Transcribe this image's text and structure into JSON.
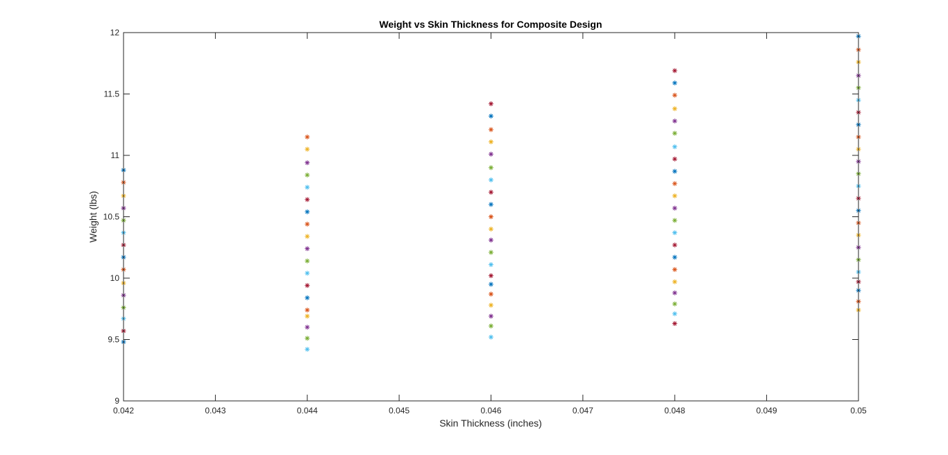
{
  "chart_data": {
    "type": "scatter",
    "title": "Weight vs Skin Thickness for Composite Design",
    "xlabel": "Skin Thickness (inches)",
    "ylabel": "Weight (lbs)",
    "xlim": [
      0.042,
      0.05
    ],
    "ylim": [
      9,
      12
    ],
    "xticks": [
      "0.042",
      "0.043",
      "0.044",
      "0.045",
      "0.046",
      "0.047",
      "0.048",
      "0.049",
      "0.05"
    ],
    "yticks": [
      "9",
      "9.5",
      "10",
      "10.5",
      "11",
      "11.5",
      "12"
    ],
    "grid": false,
    "legend": "none",
    "marker": "asterisk",
    "colors": [
      "#0072BD",
      "#D95319",
      "#EDB120",
      "#7E2F8E",
      "#77AC30",
      "#4DBEEE",
      "#A2142F"
    ],
    "points": [
      {
        "x": 0.042,
        "y": 10.88
      },
      {
        "x": 0.042,
        "y": 10.78
      },
      {
        "x": 0.042,
        "y": 10.67
      },
      {
        "x": 0.042,
        "y": 10.57
      },
      {
        "x": 0.042,
        "y": 10.47
      },
      {
        "x": 0.042,
        "y": 10.37
      },
      {
        "x": 0.042,
        "y": 10.27
      },
      {
        "x": 0.042,
        "y": 10.17
      },
      {
        "x": 0.042,
        "y": 10.07
      },
      {
        "x": 0.042,
        "y": 9.96
      },
      {
        "x": 0.042,
        "y": 9.86
      },
      {
        "x": 0.042,
        "y": 9.76
      },
      {
        "x": 0.042,
        "y": 9.67
      },
      {
        "x": 0.042,
        "y": 9.57
      },
      {
        "x": 0.042,
        "y": 9.48
      },
      {
        "x": 0.044,
        "y": 11.15
      },
      {
        "x": 0.044,
        "y": 11.05
      },
      {
        "x": 0.044,
        "y": 10.94
      },
      {
        "x": 0.044,
        "y": 10.84
      },
      {
        "x": 0.044,
        "y": 10.74
      },
      {
        "x": 0.044,
        "y": 10.64
      },
      {
        "x": 0.044,
        "y": 10.54
      },
      {
        "x": 0.044,
        "y": 10.44
      },
      {
        "x": 0.044,
        "y": 10.34
      },
      {
        "x": 0.044,
        "y": 10.24
      },
      {
        "x": 0.044,
        "y": 10.14
      },
      {
        "x": 0.044,
        "y": 10.04
      },
      {
        "x": 0.044,
        "y": 9.94
      },
      {
        "x": 0.044,
        "y": 9.84
      },
      {
        "x": 0.044,
        "y": 9.74
      },
      {
        "x": 0.044,
        "y": 9.69
      },
      {
        "x": 0.044,
        "y": 9.6
      },
      {
        "x": 0.044,
        "y": 9.51
      },
      {
        "x": 0.044,
        "y": 9.42
      },
      {
        "x": 0.046,
        "y": 11.42
      },
      {
        "x": 0.046,
        "y": 11.32
      },
      {
        "x": 0.046,
        "y": 11.21
      },
      {
        "x": 0.046,
        "y": 11.11
      },
      {
        "x": 0.046,
        "y": 11.01
      },
      {
        "x": 0.046,
        "y": 10.9
      },
      {
        "x": 0.046,
        "y": 10.8
      },
      {
        "x": 0.046,
        "y": 10.7
      },
      {
        "x": 0.046,
        "y": 10.6
      },
      {
        "x": 0.046,
        "y": 10.5
      },
      {
        "x": 0.046,
        "y": 10.4
      },
      {
        "x": 0.046,
        "y": 10.31
      },
      {
        "x": 0.046,
        "y": 10.21
      },
      {
        "x": 0.046,
        "y": 10.11
      },
      {
        "x": 0.046,
        "y": 10.02
      },
      {
        "x": 0.046,
        "y": 9.95
      },
      {
        "x": 0.046,
        "y": 9.87
      },
      {
        "x": 0.046,
        "y": 9.78
      },
      {
        "x": 0.046,
        "y": 9.69
      },
      {
        "x": 0.046,
        "y": 9.61
      },
      {
        "x": 0.046,
        "y": 9.52
      },
      {
        "x": 0.048,
        "y": 11.69
      },
      {
        "x": 0.048,
        "y": 11.59
      },
      {
        "x": 0.048,
        "y": 11.49
      },
      {
        "x": 0.048,
        "y": 11.38
      },
      {
        "x": 0.048,
        "y": 11.28
      },
      {
        "x": 0.048,
        "y": 11.18
      },
      {
        "x": 0.048,
        "y": 11.07
      },
      {
        "x": 0.048,
        "y": 10.97
      },
      {
        "x": 0.048,
        "y": 10.87
      },
      {
        "x": 0.048,
        "y": 10.77
      },
      {
        "x": 0.048,
        "y": 10.67
      },
      {
        "x": 0.048,
        "y": 10.57
      },
      {
        "x": 0.048,
        "y": 10.47
      },
      {
        "x": 0.048,
        "y": 10.37
      },
      {
        "x": 0.048,
        "y": 10.27
      },
      {
        "x": 0.048,
        "y": 10.17
      },
      {
        "x": 0.048,
        "y": 10.07
      },
      {
        "x": 0.048,
        "y": 9.97
      },
      {
        "x": 0.048,
        "y": 9.88
      },
      {
        "x": 0.048,
        "y": 9.79
      },
      {
        "x": 0.048,
        "y": 9.71
      },
      {
        "x": 0.048,
        "y": 9.63
      },
      {
        "x": 0.05,
        "y": 11.97
      },
      {
        "x": 0.05,
        "y": 11.86
      },
      {
        "x": 0.05,
        "y": 11.76
      },
      {
        "x": 0.05,
        "y": 11.65
      },
      {
        "x": 0.05,
        "y": 11.55
      },
      {
        "x": 0.05,
        "y": 11.45
      },
      {
        "x": 0.05,
        "y": 11.35
      },
      {
        "x": 0.05,
        "y": 11.25
      },
      {
        "x": 0.05,
        "y": 11.15
      },
      {
        "x": 0.05,
        "y": 11.05
      },
      {
        "x": 0.05,
        "y": 10.95
      },
      {
        "x": 0.05,
        "y": 10.85
      },
      {
        "x": 0.05,
        "y": 10.75
      },
      {
        "x": 0.05,
        "y": 10.65
      },
      {
        "x": 0.05,
        "y": 10.55
      },
      {
        "x": 0.05,
        "y": 10.45
      },
      {
        "x": 0.05,
        "y": 10.35
      },
      {
        "x": 0.05,
        "y": 10.25
      },
      {
        "x": 0.05,
        "y": 10.15
      },
      {
        "x": 0.05,
        "y": 10.05
      },
      {
        "x": 0.05,
        "y": 9.97
      },
      {
        "x": 0.05,
        "y": 9.9
      },
      {
        "x": 0.05,
        "y": 9.81
      },
      {
        "x": 0.05,
        "y": 9.74
      }
    ]
  }
}
